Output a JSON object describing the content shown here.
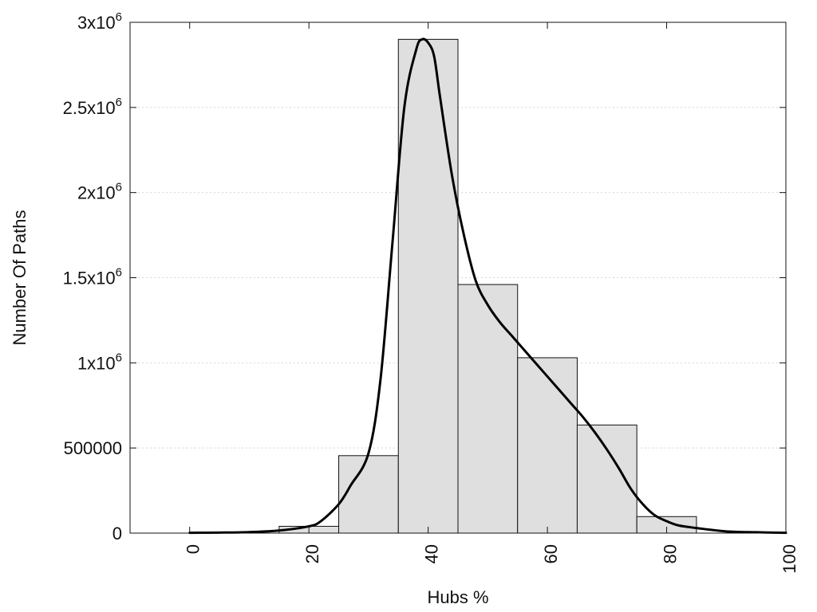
{
  "chart_data": {
    "type": "bar",
    "xlabel": "Hubs %",
    "ylabel": "Number Of Paths",
    "xlim": [
      -10,
      100
    ],
    "ylim": [
      0,
      3000000
    ],
    "grid": true,
    "x_ticks": [
      0,
      20,
      40,
      60,
      80,
      100
    ],
    "y_ticks": [
      {
        "value": 0,
        "label": "0"
      },
      {
        "value": 500000,
        "label": "500000"
      },
      {
        "value": 1000000,
        "label": "1x10^6"
      },
      {
        "value": 1500000,
        "label": "1.5x10^6"
      },
      {
        "value": 2000000,
        "label": "2x10^6"
      },
      {
        "value": 2500000,
        "label": "2.5x10^6"
      },
      {
        "value": 3000000,
        "label": "3x10^6"
      }
    ],
    "bins": [
      {
        "start": 15,
        "end": 25,
        "value": 40000
      },
      {
        "start": 25,
        "end": 35,
        "value": 455000
      },
      {
        "start": 35,
        "end": 45,
        "value": 2900000
      },
      {
        "start": 45,
        "end": 55,
        "value": 1460000
      },
      {
        "start": 55,
        "end": 65,
        "value": 1030000
      },
      {
        "start": 65,
        "end": 75,
        "value": 635000
      },
      {
        "start": 75,
        "end": 85,
        "value": 97000
      }
    ],
    "curve": {
      "x": [
        0,
        5,
        10,
        15,
        20,
        22,
        25,
        27,
        30,
        32,
        34,
        36,
        38,
        39,
        40,
        41,
        42,
        44,
        46,
        48,
        50,
        52,
        54,
        56,
        58,
        60,
        62,
        64,
        66,
        68,
        70,
        72,
        74,
        76,
        78,
        80,
        82,
        85,
        90,
        95,
        100
      ],
      "y": [
        2000,
        3000,
        6000,
        15000,
        40000,
        70000,
        170000,
        280000,
        470000,
        900000,
        1700000,
        2500000,
        2840000,
        2900000,
        2880000,
        2800000,
        2560000,
        2100000,
        1750000,
        1480000,
        1340000,
        1240000,
        1160000,
        1080000,
        1000000,
        920000,
        840000,
        760000,
        680000,
        590000,
        490000,
        380000,
        260000,
        170000,
        105000,
        70000,
        45000,
        30000,
        10000,
        5000,
        2000
      ]
    }
  }
}
